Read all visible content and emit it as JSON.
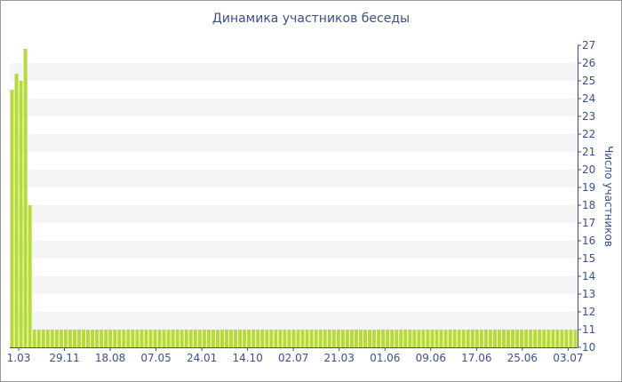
{
  "chart_data": {
    "type": "bar",
    "title": "Динамика участников беседы",
    "ylabel": "Число участников",
    "xlabel": "",
    "ylim": [
      10,
      27
    ],
    "y_ticks": [
      10,
      11,
      12,
      13,
      14,
      15,
      16,
      17,
      18,
      19,
      20,
      21,
      22,
      23,
      24,
      25,
      26,
      27
    ],
    "x_tick_labels": [
      "1.03",
      "29.11",
      "18.08",
      "07.05",
      "24.01",
      "14.10",
      "02.07",
      "21.03",
      "01.06",
      "09.06",
      "17.06",
      "25.06",
      "03.07"
    ],
    "bar_color": "#b5dc34",
    "band_color": "#f5f5f5",
    "axis_color": "#3b4f8f",
    "values": [
      24.5,
      25.4,
      25,
      26.8,
      18,
      11,
      11,
      11,
      11,
      11,
      11,
      11,
      11,
      11,
      11,
      11,
      11,
      11,
      11,
      11,
      11,
      11,
      11,
      11,
      11,
      11,
      11,
      11,
      11,
      11,
      11,
      11,
      11,
      11,
      11,
      11,
      11,
      11,
      11,
      11,
      11,
      11,
      11,
      11,
      11,
      11,
      11,
      11,
      11,
      11,
      11,
      11,
      11,
      11,
      11,
      11,
      11,
      11,
      11,
      11,
      11,
      11,
      11,
      11,
      11,
      11,
      11,
      11,
      11,
      11,
      11,
      11,
      11,
      11,
      11,
      11,
      11,
      11,
      11,
      11,
      11,
      11,
      11,
      11,
      11,
      11,
      11,
      11,
      11,
      11,
      11,
      11,
      11,
      11,
      11,
      11,
      11,
      11,
      11,
      11,
      11,
      11,
      11,
      11,
      11,
      11,
      11,
      11,
      11,
      11,
      11,
      11,
      11,
      11,
      11,
      11,
      11,
      11,
      11,
      11,
      11,
      11,
      11,
      11,
      11,
      11,
      11
    ]
  }
}
